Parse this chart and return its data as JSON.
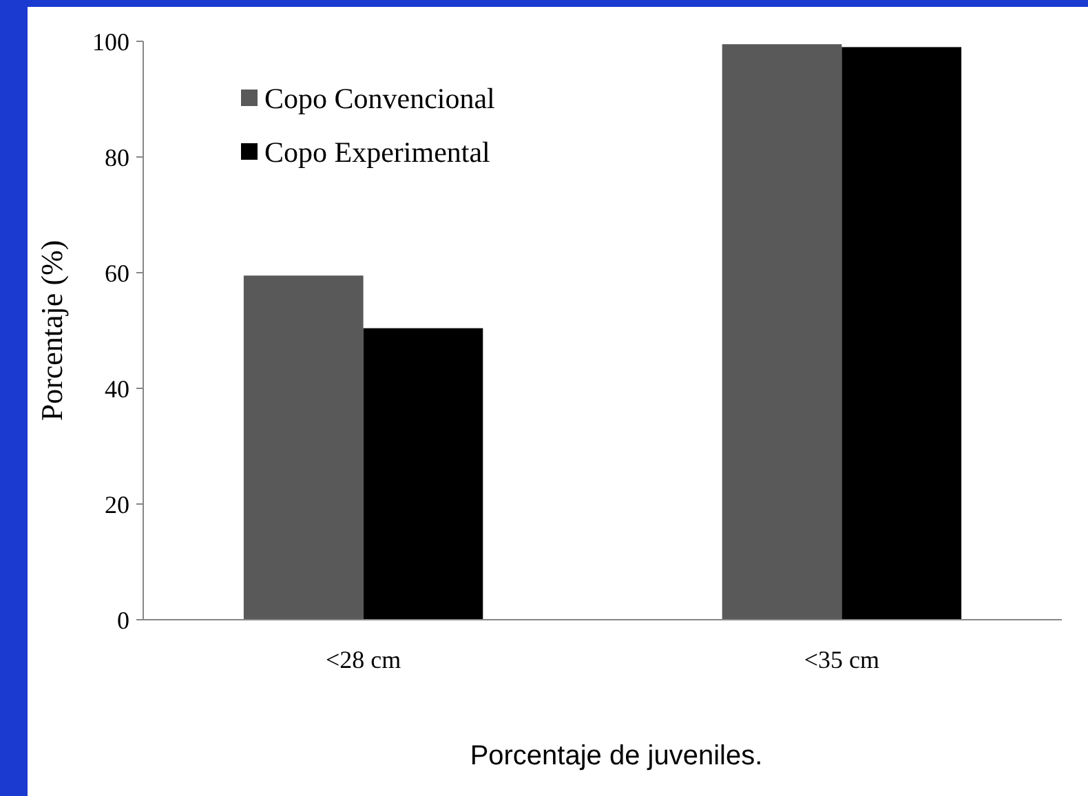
{
  "chart_data": {
    "type": "bar",
    "xlabel": "Porcentaje de juveniles.",
    "ylabel": "Porcentaje (%)",
    "categories": [
      "<28 cm",
      "<35 cm"
    ],
    "series": [
      {
        "name": "Copo Convencional",
        "color": "#595959",
        "values": [
          59.5,
          99.5
        ]
      },
      {
        "name": "Copo Experimental",
        "color": "#000000",
        "values": [
          50.4,
          99.0
        ]
      }
    ],
    "ylim": [
      0,
      100
    ],
    "yticks": [
      0,
      20,
      40,
      60,
      80,
      100
    ],
    "grid": false,
    "legend": "top left"
  }
}
